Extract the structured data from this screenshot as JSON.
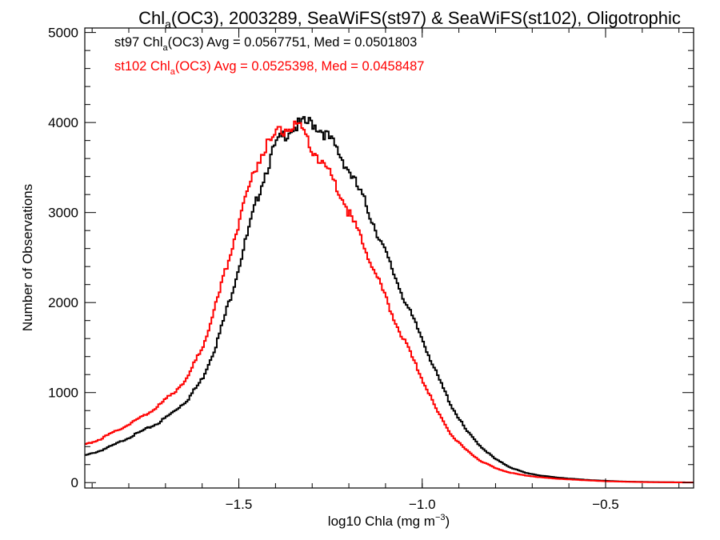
{
  "chart_data": {
    "type": "line",
    "title": {
      "main": "Chl",
      "sub": "a",
      "rest": "(OC3), 2003289, SeaWiFS(st97) & SeaWiFS(st102), Oligotrophic"
    },
    "xlabel": {
      "text": "log10 Chla (mg m",
      "sup": "−3",
      "close": ")"
    },
    "ylabel": "Number of Observations",
    "xlim": [
      -1.92,
      -0.26
    ],
    "ylim": [
      -60,
      5050
    ],
    "xticks": [
      -1.5,
      -1.0,
      -0.5
    ],
    "xtick_labels": [
      "−1.5",
      "−1.0",
      "−0.5"
    ],
    "yticks": [
      0,
      1000,
      2000,
      3000,
      4000,
      5000
    ],
    "ytick_labels": [
      "0",
      "1000",
      "2000",
      "3000",
      "4000",
      "5000"
    ],
    "grid": false,
    "legend_placement": "top-left",
    "series": [
      {
        "color": "#000000",
        "stats": {
          "p1": "st97 Chl",
          "sub": "a",
          "p2": "(OC3) Avg = 0.0567751, Med = 0.0501803"
        },
        "x": [
          -1.92,
          -1.88,
          -1.84,
          -1.8,
          -1.76,
          -1.72,
          -1.68,
          -1.64,
          -1.6,
          -1.56,
          -1.52,
          -1.48,
          -1.44,
          -1.4,
          -1.36,
          -1.33,
          -1.3,
          -1.27,
          -1.24,
          -1.2,
          -1.16,
          -1.12,
          -1.08,
          -1.04,
          -1.0,
          -0.96,
          -0.92,
          -0.88,
          -0.84,
          -0.8,
          -0.76,
          -0.72,
          -0.68,
          -0.64,
          -0.6,
          -0.55,
          -0.5,
          -0.45,
          -0.4,
          -0.35,
          -0.3,
          -0.26
        ],
        "y": [
          300,
          350,
          420,
          500,
          580,
          660,
          780,
          920,
          1150,
          1550,
          2100,
          2700,
          3300,
          3750,
          3930,
          3980,
          4000,
          3900,
          3750,
          3470,
          3150,
          2750,
          2350,
          1950,
          1600,
          1200,
          850,
          580,
          400,
          260,
          170,
          110,
          80,
          60,
          45,
          30,
          20,
          12,
          8,
          5,
          3,
          2
        ]
      },
      {
        "color": "#ff0000",
        "stats": {
          "p1": "st102 Chl",
          "sub": "a",
          "p2": "(OC3) Avg = 0.0525398, Med = 0.0458487"
        },
        "x": [
          -1.92,
          -1.88,
          -1.84,
          -1.8,
          -1.76,
          -1.72,
          -1.68,
          -1.64,
          -1.6,
          -1.56,
          -1.52,
          -1.48,
          -1.44,
          -1.4,
          -1.36,
          -1.33,
          -1.3,
          -1.27,
          -1.24,
          -1.2,
          -1.16,
          -1.12,
          -1.08,
          -1.04,
          -1.0,
          -0.96,
          -0.92,
          -0.88,
          -0.84,
          -0.8,
          -0.76,
          -0.72,
          -0.68,
          -0.64,
          -0.6,
          -0.55,
          -0.5,
          -0.45,
          -0.4,
          -0.35,
          -0.3,
          -0.26
        ],
        "y": [
          420,
          480,
          560,
          650,
          740,
          850,
          990,
          1170,
          1500,
          2000,
          2600,
          3200,
          3650,
          3870,
          3950,
          3920,
          3700,
          3550,
          3350,
          3000,
          2650,
          2250,
          1850,
          1500,
          1150,
          800,
          530,
          360,
          240,
          160,
          110,
          80,
          60,
          45,
          35,
          25,
          15,
          10,
          6,
          4,
          2,
          1
        ]
      }
    ]
  }
}
